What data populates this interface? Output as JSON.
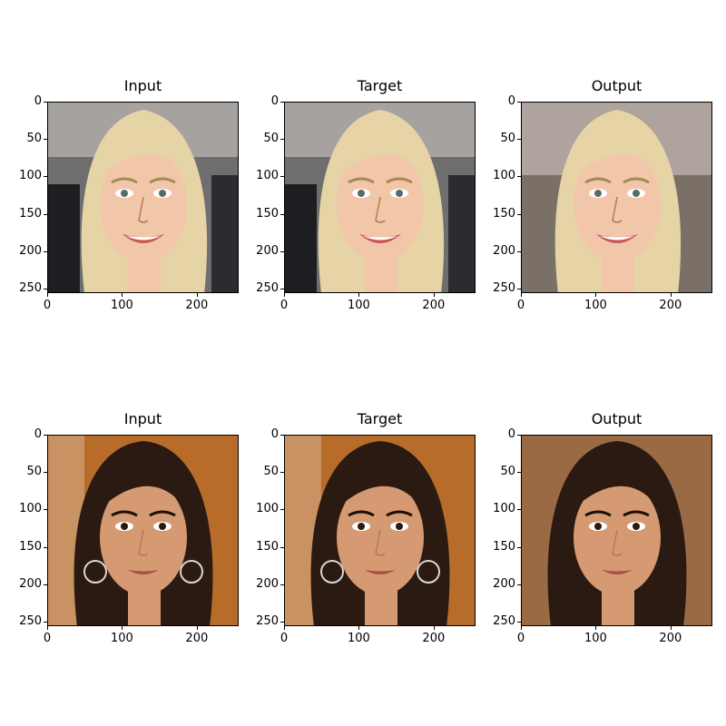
{
  "rows": [
    {
      "panels": [
        {
          "title": "Input",
          "face": "blonde",
          "bg": "crowd"
        },
        {
          "title": "Target",
          "face": "blonde",
          "bg": "crowd"
        },
        {
          "title": "Output",
          "face": "blonde",
          "bg": "smooth"
        }
      ]
    },
    {
      "panels": [
        {
          "title": "Input",
          "face": "brunette",
          "bg": "warm"
        },
        {
          "title": "Target",
          "face": "brunette",
          "bg": "warm"
        },
        {
          "title": "Output",
          "face": "brunette",
          "bg": "smooth-warm"
        }
      ]
    }
  ],
  "axis": {
    "yticks": [
      "0",
      "50",
      "100",
      "150",
      "200",
      "250"
    ],
    "xticks": [
      "0",
      "100",
      "200"
    ]
  },
  "colors": {
    "blonde_hair": "#e6d3a6",
    "blonde_skin": "#f2c6a8",
    "brunette_hair": "#2a1a12",
    "brunette_skin": "#d69a72",
    "crowd_bg": "#6e6e6e",
    "warm_bg": "#b86c2a"
  }
}
